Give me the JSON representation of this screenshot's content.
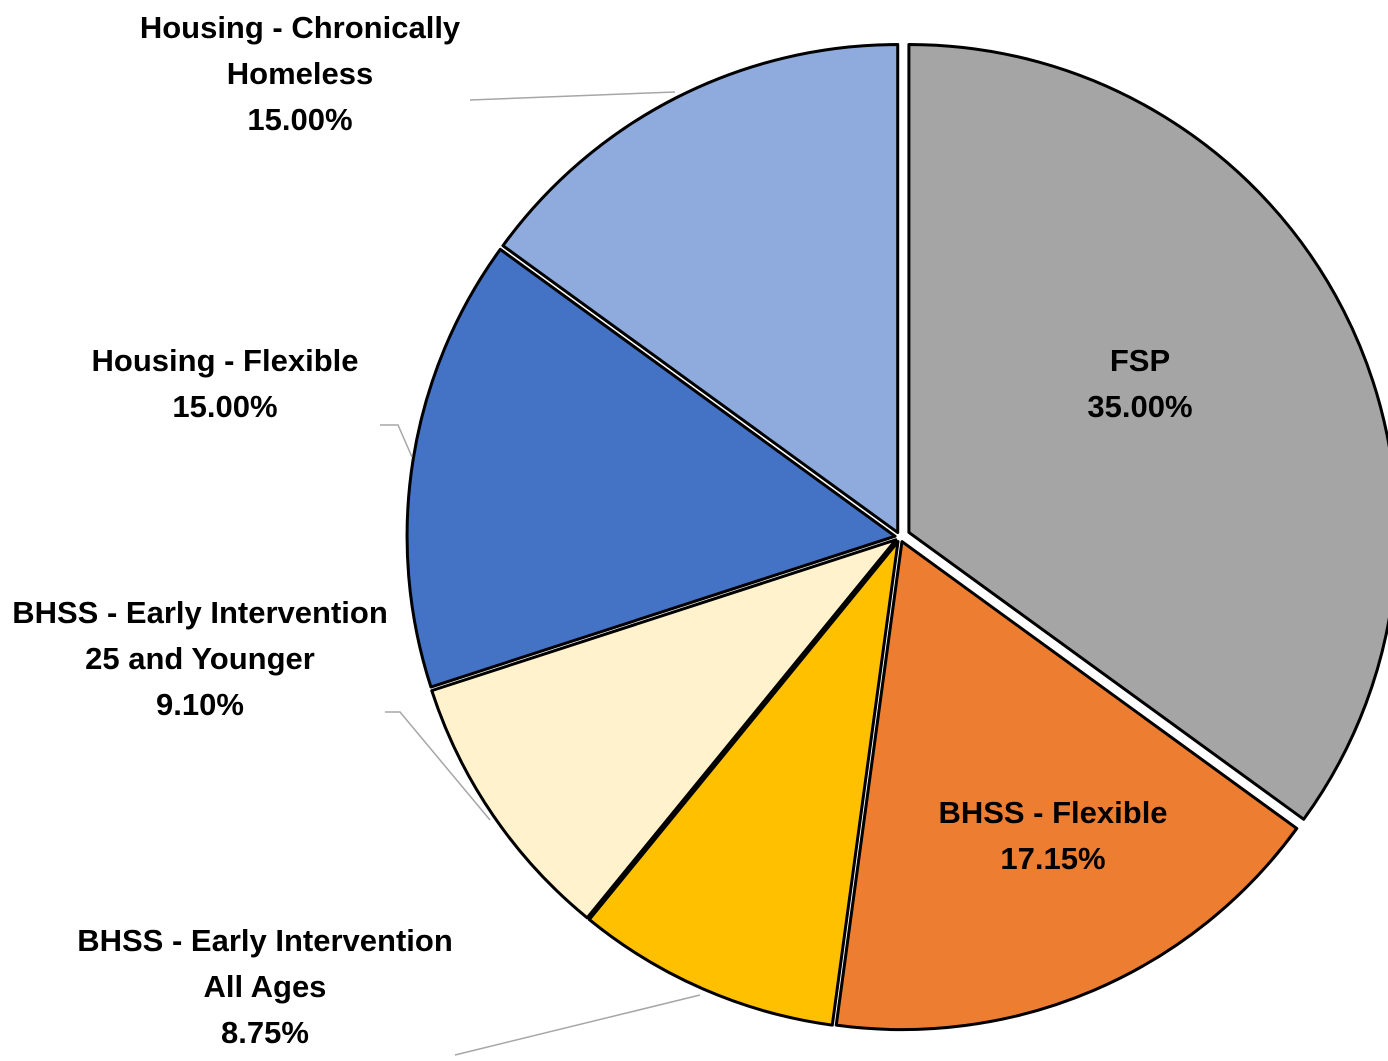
{
  "chart_data": {
    "type": "pie",
    "categories": [
      "FSP",
      "BHSS - Flexible",
      "BHSS - Early Intervention All Ages",
      "BHSS - Early Intervention 25 and Younger",
      "Housing - Flexible",
      "Housing - Chronically Homeless"
    ],
    "values": [
      35,
      17.15,
      8.75,
      9.1,
      15,
      15
    ],
    "value_labels": [
      "35.00%",
      "17.15%",
      "8.75%",
      "9.10%",
      "15.00%",
      "15.00%"
    ],
    "colors": [
      "#a5a5a5",
      "#ed7d31",
      "#ffc000",
      "#fff2cc",
      "#4472c4",
      "#8faadc"
    ]
  }
}
